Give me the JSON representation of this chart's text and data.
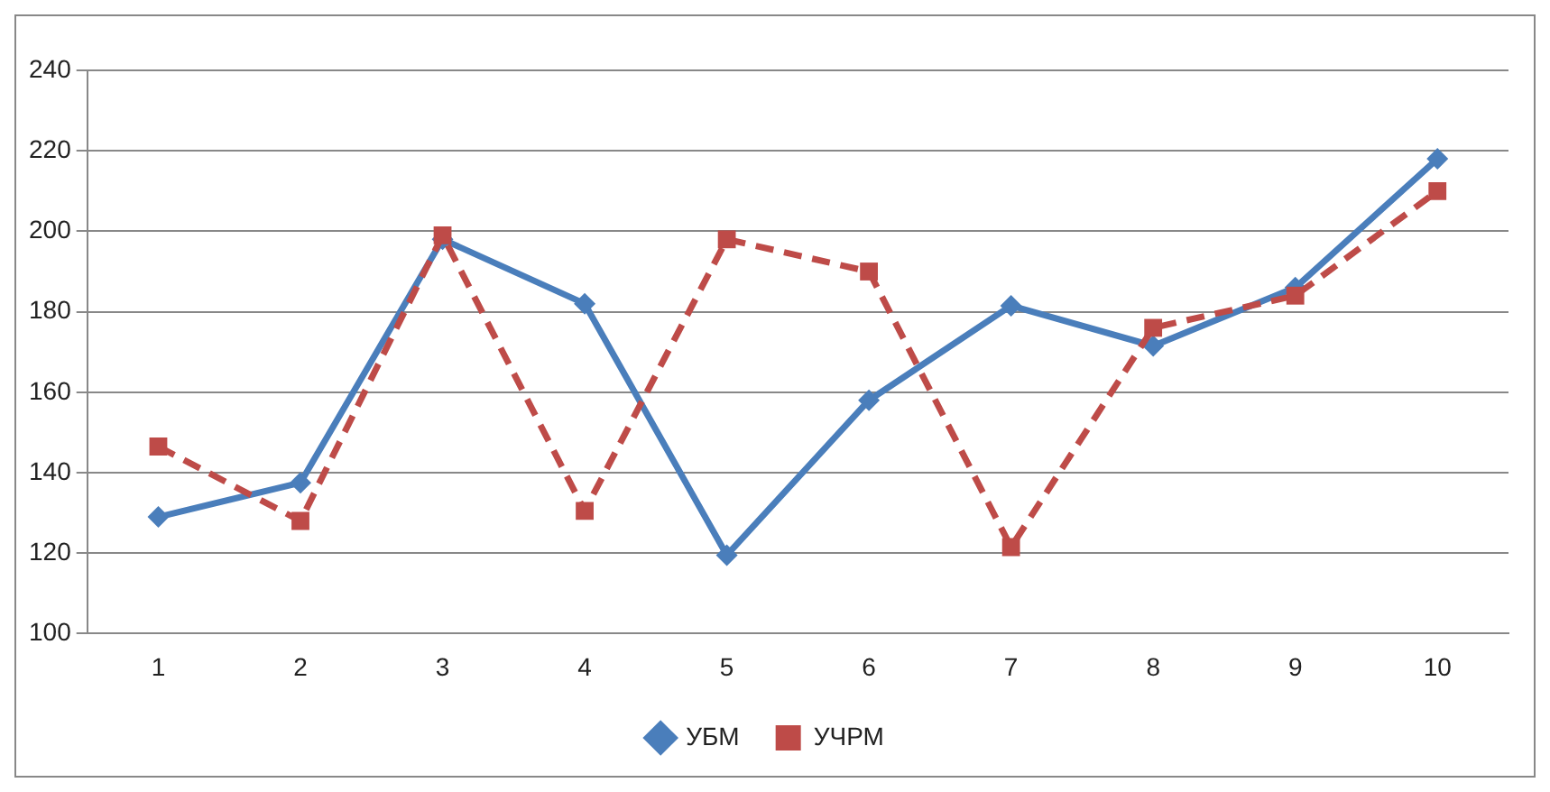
{
  "chart_data": {
    "type": "line",
    "categories": [
      "1",
      "2",
      "3",
      "4",
      "5",
      "6",
      "7",
      "8",
      "9",
      "10"
    ],
    "series": [
      {
        "name": "УБМ",
        "color": "#4a7ebb",
        "marker": "diamond",
        "line_style": "solid",
        "values": [
          129,
          137.5,
          198,
          182,
          119.5,
          158,
          181.5,
          171.5,
          186,
          218
        ]
      },
      {
        "name": "УЧРМ",
        "color": "#be4b48",
        "marker": "square",
        "line_style": "dashed",
        "values": [
          146.5,
          128,
          199,
          130.5,
          198,
          190,
          121.5,
          176,
          184,
          210
        ]
      }
    ],
    "ylim": [
      100,
      240
    ],
    "yticks": [
      100,
      120,
      140,
      160,
      180,
      200,
      220,
      240
    ],
    "grid": "y",
    "legend": "bottom"
  }
}
